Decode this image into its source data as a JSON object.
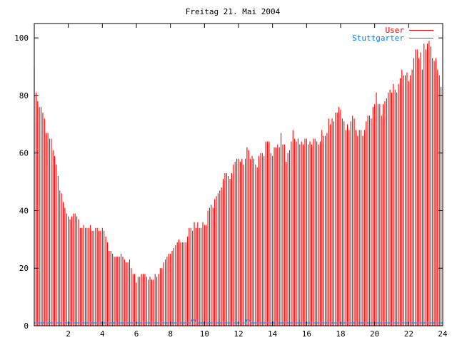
{
  "chart_data": {
    "type": "bar",
    "title": "Freitag 21. Mai 2004",
    "xlabel": "",
    "ylabel": "",
    "xlim": [
      0,
      24
    ],
    "ylim": [
      0,
      105
    ],
    "xticks": [
      2,
      4,
      6,
      8,
      10,
      12,
      14,
      16,
      18,
      20,
      22,
      24
    ],
    "yticks": [
      0,
      20,
      40,
      60,
      80,
      100
    ],
    "grid": false,
    "legend_position": "top-right",
    "x_step": 0.1,
    "series": [
      {
        "name": "User",
        "color": "#ff0000",
        "style": "impulses",
        "values": [
          90,
          81,
          78,
          76,
          76,
          74,
          72,
          67,
          67,
          65,
          65,
          61,
          59,
          56,
          52,
          47,
          46,
          43,
          41,
          39,
          38,
          37,
          38,
          39,
          39,
          38,
          37,
          34,
          34,
          35,
          34,
          34,
          34,
          35,
          33,
          33,
          34,
          34,
          33,
          33,
          34,
          33,
          31,
          29,
          26,
          26,
          25,
          24,
          24,
          24,
          24,
          25,
          24,
          23,
          22,
          22,
          23,
          20,
          18,
          18,
          15,
          17,
          17,
          18,
          18,
          18,
          17,
          16,
          17,
          16,
          16,
          18,
          17,
          18,
          20,
          20,
          22,
          23,
          24,
          25,
          25,
          26,
          27,
          28,
          29,
          30,
          29,
          29,
          29,
          29,
          31,
          34,
          34,
          33,
          36,
          34,
          36,
          34,
          34,
          36,
          35,
          35,
          40,
          41,
          42,
          41,
          44,
          45,
          46,
          47,
          48,
          51,
          53,
          53,
          52,
          51,
          53,
          56,
          57,
          58,
          58,
          57,
          58,
          56,
          58,
          62,
          61,
          58,
          59,
          58,
          56,
          55,
          59,
          60,
          60,
          59,
          64,
          64,
          64,
          60,
          59,
          62,
          62,
          63,
          62,
          67,
          63,
          63,
          57,
          60,
          61,
          64,
          68,
          65,
          64,
          65,
          63,
          64,
          63,
          65,
          65,
          63,
          64,
          63,
          65,
          65,
          64,
          63,
          64,
          68,
          66,
          66,
          67,
          72,
          70,
          72,
          71,
          74,
          74,
          76,
          75,
          72,
          71,
          68,
          70,
          68,
          71,
          73,
          72,
          68,
          66,
          68,
          68,
          66,
          68,
          71,
          73,
          73,
          72,
          76,
          77,
          81,
          77,
          77,
          73,
          77,
          78,
          79,
          81,
          82,
          81,
          84,
          82,
          81,
          84,
          86,
          89,
          87,
          87,
          88,
          85,
          87,
          89,
          93,
          96,
          96,
          93,
          95,
          89,
          98,
          96,
          98,
          99,
          97,
          93,
          92,
          93,
          89,
          87,
          83
        ]
      },
      {
        "name": "Stuttgarter",
        "color": "#0080ff",
        "style": "steps",
        "points": [
          [
            0,
            1
          ],
          [
            9.2,
            1
          ],
          [
            9.25,
            2
          ],
          [
            9.45,
            2
          ],
          [
            9.5,
            1
          ],
          [
            12.4,
            1
          ],
          [
            12.45,
            2
          ],
          [
            12.65,
            2
          ],
          [
            12.7,
            1
          ],
          [
            24,
            1
          ]
        ]
      }
    ]
  }
}
